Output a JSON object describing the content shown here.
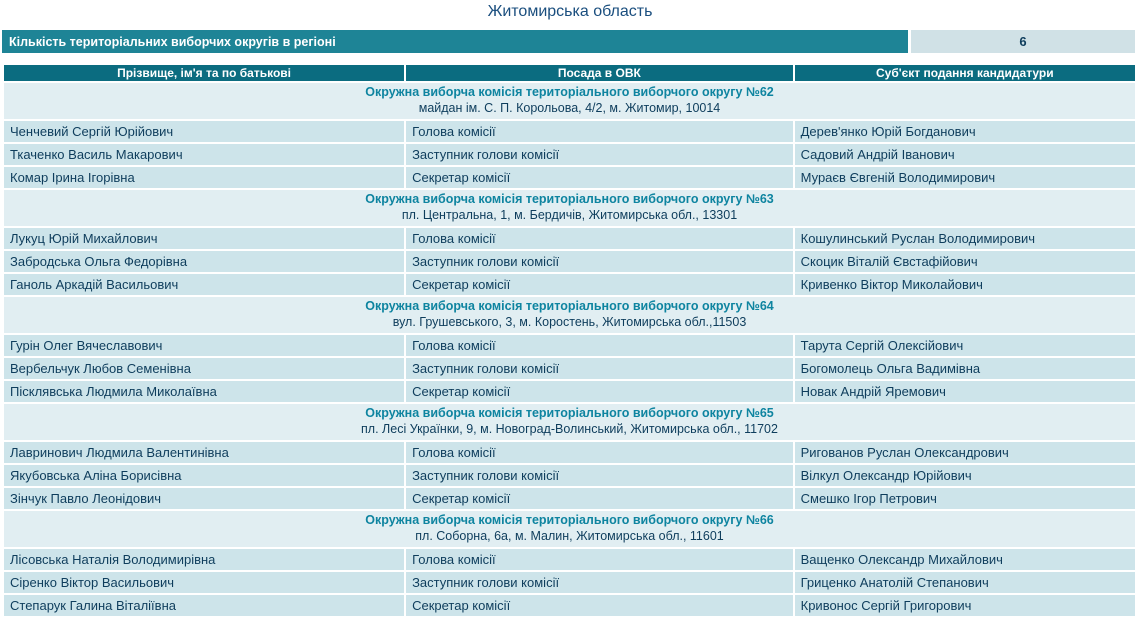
{
  "page": {
    "title": "Житомирська область"
  },
  "summary": {
    "label": "Кількість територіальних виборчих округів в регіоні",
    "value": "6"
  },
  "table": {
    "headers": [
      "Прізвище, ім'я та по батькові",
      "Посада в ОВК",
      "Суб'єкт подання кандидатури"
    ]
  },
  "districts": [
    {
      "title": "Окружна виборча комісія територіального виборчого округу №62",
      "address": "майдан ім. С. П. Корольова, 4/2, м. Житомир, 10014",
      "members": [
        {
          "name": "Ченчевий Сергій Юрійович",
          "position": "Голова комісії",
          "nominator": "Дерев'янко Юрій Богданович"
        },
        {
          "name": "Ткаченко Василь Макарович",
          "position": "Заступник голови комісії",
          "nominator": "Садовий Андрій Іванович"
        },
        {
          "name": "Комар Ірина Ігорівна",
          "position": "Секретар комісії",
          "nominator": "Мураєв Євгеній Володимирович"
        }
      ]
    },
    {
      "title": "Окружна виборча комісія територіального виборчого округу №63",
      "address": "пл. Центральна, 1, м. Бердичів, Житомирська обл., 13301",
      "members": [
        {
          "name": "Лукуц Юрій Михайлович",
          "position": "Голова комісії",
          "nominator": "Кошулинський Руслан Володимирович"
        },
        {
          "name": "Забродська Ольга Федорівна",
          "position": "Заступник голови комісії",
          "nominator": "Скоцик Віталій Євстафійович"
        },
        {
          "name": "Ганоль Аркадій Васильович",
          "position": "Секретар комісії",
          "nominator": "Кривенко Віктор Миколайович"
        }
      ]
    },
    {
      "title": "Окружна виборча комісія територіального виборчого округу №64",
      "address": "вул. Грушевського, 3, м. Коростень, Житомирська обл.,11503",
      "members": [
        {
          "name": "Гурін Олег Вячеславович",
          "position": "Голова комісії",
          "nominator": "Тарута Сергій Олексійович"
        },
        {
          "name": "Вербельчук Любов Семенівна",
          "position": "Заступник голови комісії",
          "nominator": "Богомолець Ольга Вадимівна"
        },
        {
          "name": "Пісклявська Людмила Миколаївна",
          "position": "Секретар комісії",
          "nominator": "Новак Андрій Яремович"
        }
      ]
    },
    {
      "title": "Окружна виборча комісія територіального виборчого округу №65",
      "address": "пл. Лесі Українки, 9, м. Новоград-Волинський, Житомирська обл., 11702",
      "members": [
        {
          "name": "Лавринович Людмила Валентинівна",
          "position": "Голова комісії",
          "nominator": "Ригованов Руслан Олександрович"
        },
        {
          "name": "Якубовська Аліна Борисівна",
          "position": "Заступник голови комісії",
          "nominator": "Вілкул Олександр Юрійович"
        },
        {
          "name": "Зінчук Павло Леонідович",
          "position": "Секретар комісії",
          "nominator": "Смешко Ігор Петрович"
        }
      ]
    },
    {
      "title": "Окружна виборча комісія територіального виборчого округу №66",
      "address": "пл. Соборна, 6а, м. Малин, Житомирська обл., 11601",
      "members": [
        {
          "name": "Лісовська Наталія Володимирівна",
          "position": "Голова комісії",
          "nominator": "Ващенко Олександр Михайлович"
        },
        {
          "name": "Сіренко Віктор Васильович",
          "position": "Заступник голови комісії",
          "nominator": "Гриценко Анатолій Степанович"
        },
        {
          "name": "Степарук Галина Віталіївна",
          "position": "Секретар комісії",
          "nominator": "Кривонос Сергій Григорович"
        }
      ]
    }
  ],
  "colors": {
    "summary_bar": "#1E8496",
    "table_header": "#0B6C80",
    "district_title_text": "#0E84A0",
    "body_text": "#0E3D5C",
    "page_title_text": "#1A4E7E",
    "data_row_bg": "#CDE4EA",
    "section_row_bg": "#E1EEF2",
    "summary_value_bg": "#D0E1E6"
  }
}
